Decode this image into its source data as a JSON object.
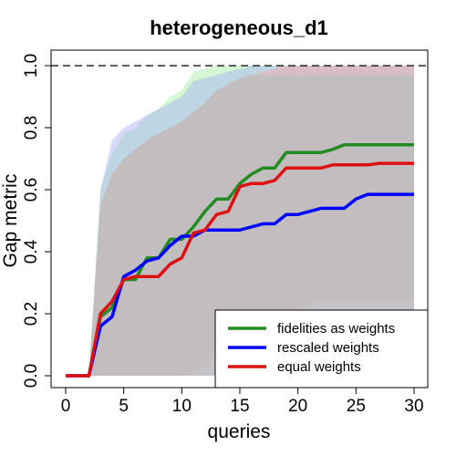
{
  "chart_data": {
    "type": "line",
    "title": "heterogeneous_d1",
    "xlabel": "queries",
    "ylabel": "Gap metric",
    "xlim": [
      0,
      30
    ],
    "ylim": [
      0,
      1.04
    ],
    "x_ticks": [
      0,
      5,
      10,
      15,
      20,
      25,
      30
    ],
    "y_ticks": [
      0.0,
      0.2,
      0.4,
      0.6,
      0.8,
      1.0
    ],
    "x_tick_labels": [
      "0",
      "5",
      "10",
      "15",
      "20",
      "25",
      "30"
    ],
    "y_tick_labels": [
      "0.0",
      "0.2",
      "0.4",
      "0.6",
      "0.8",
      "1.0"
    ],
    "reference_line": {
      "y": 1.0,
      "style": "dashed",
      "color": "#000000"
    },
    "grid": false,
    "legend_position": "bottom-right",
    "x": [
      0,
      1,
      2,
      3,
      4,
      5,
      6,
      7,
      8,
      9,
      10,
      11,
      12,
      13,
      14,
      15,
      16,
      17,
      18,
      19,
      20,
      21,
      22,
      23,
      24,
      25,
      26,
      27,
      28,
      29,
      30
    ],
    "series": [
      {
        "name": "fidelities as weights",
        "color": "#228B22",
        "values": [
          0,
          0,
          0,
          0.19,
          0.22,
          0.31,
          0.31,
          0.38,
          0.38,
          0.44,
          0.44,
          0.48,
          0.53,
          0.57,
          0.57,
          0.62,
          0.65,
          0.67,
          0.67,
          0.72,
          0.72,
          0.72,
          0.72,
          0.73,
          0.745,
          0.745,
          0.745,
          0.745,
          0.745,
          0.745,
          0.745
        ],
        "band_lower": [
          0,
          0,
          0,
          0,
          0,
          0,
          0,
          0,
          0,
          0,
          0,
          0.02,
          0.06,
          0.08,
          0.1,
          0.12,
          0.15,
          0.17,
          0.18,
          0.2,
          0.22,
          0.24,
          0.25,
          0.25,
          0.25,
          0.25,
          0.25,
          0.25,
          0.25,
          0.25,
          0.25
        ],
        "band_upper": [
          0,
          0,
          0,
          0.6,
          0.72,
          0.78,
          0.8,
          0.84,
          0.86,
          0.9,
          0.92,
          0.98,
          0.99,
          1.0,
          1.0,
          1.0,
          1.0,
          1.0,
          1.0,
          1.0,
          1.0,
          1.0,
          1.0,
          1.0,
          1.0,
          1.0,
          1.0,
          1.0,
          1.0,
          1.0,
          1.0
        ],
        "band_color": "#90EE90"
      },
      {
        "name": "rescaled weights",
        "color": "#0000FF",
        "values": [
          0,
          0,
          0,
          0.16,
          0.19,
          0.32,
          0.34,
          0.37,
          0.38,
          0.42,
          0.45,
          0.45,
          0.47,
          0.47,
          0.47,
          0.47,
          0.48,
          0.49,
          0.49,
          0.52,
          0.52,
          0.53,
          0.54,
          0.54,
          0.54,
          0.57,
          0.585,
          0.585,
          0.585,
          0.585,
          0.585
        ],
        "band_lower": [
          0,
          0,
          0,
          0,
          0,
          0,
          0,
          0,
          0,
          0,
          0,
          0,
          0,
          0,
          0,
          0,
          0,
          0,
          0,
          0,
          0,
          0,
          0,
          0,
          0,
          0,
          0,
          0,
          0,
          0,
          0
        ],
        "band_upper": [
          0,
          0,
          0,
          0.6,
          0.76,
          0.8,
          0.82,
          0.84,
          0.86,
          0.88,
          0.9,
          0.95,
          0.96,
          0.97,
          0.98,
          0.99,
          1.0,
          1.0,
          1.0,
          1.0,
          1.0,
          1.0,
          1.0,
          1.0,
          1.0,
          1.0,
          1.0,
          1.0,
          1.0,
          1.0,
          1.0
        ],
        "band_color": "#A0A0FF"
      },
      {
        "name": "equal weights",
        "color": "#DD1111",
        "values": [
          0,
          0,
          0,
          0.2,
          0.24,
          0.31,
          0.32,
          0.32,
          0.32,
          0.36,
          0.38,
          0.46,
          0.47,
          0.52,
          0.53,
          0.61,
          0.62,
          0.62,
          0.63,
          0.67,
          0.67,
          0.67,
          0.67,
          0.68,
          0.68,
          0.68,
          0.68,
          0.685,
          0.685,
          0.685,
          0.685
        ],
        "band_lower": [
          0,
          0,
          0,
          0,
          0,
          0,
          0,
          0,
          0,
          0,
          0,
          0,
          0.03,
          0.05,
          0.07,
          0.1,
          0.13,
          0.15,
          0.16,
          0.19,
          0.21,
          0.23,
          0.24,
          0.24,
          0.24,
          0.24,
          0.24,
          0.24,
          0.24,
          0.24,
          0.24
        ],
        "band_upper": [
          0,
          0,
          0,
          0.55,
          0.65,
          0.7,
          0.73,
          0.76,
          0.78,
          0.8,
          0.82,
          0.85,
          0.88,
          0.92,
          0.94,
          0.96,
          0.97,
          0.98,
          0.99,
          1.0,
          1.0,
          1.0,
          1.0,
          1.0,
          1.0,
          1.0,
          1.0,
          1.0,
          1.0,
          1.0,
          1.0
        ],
        "band_color": "#FF9999"
      }
    ],
    "overlap_band": {
      "color": "#BEBEBE",
      "lower": [
        0,
        0,
        0,
        0,
        0,
        0,
        0,
        0,
        0,
        0,
        0,
        0,
        0,
        0,
        0,
        0,
        0,
        0,
        0,
        0,
        0,
        0,
        0,
        0,
        0,
        0,
        0,
        0,
        0,
        0,
        0
      ],
      "upper": [
        0,
        0,
        0,
        0.55,
        0.65,
        0.7,
        0.73,
        0.76,
        0.78,
        0.8,
        0.82,
        0.85,
        0.88,
        0.92,
        0.94,
        0.96,
        0.97,
        0.97,
        0.97,
        0.97,
        0.97,
        0.97,
        0.97,
        0.97,
        0.97,
        0.97,
        0.97,
        0.97,
        0.97,
        0.97,
        0.97
      ]
    }
  }
}
